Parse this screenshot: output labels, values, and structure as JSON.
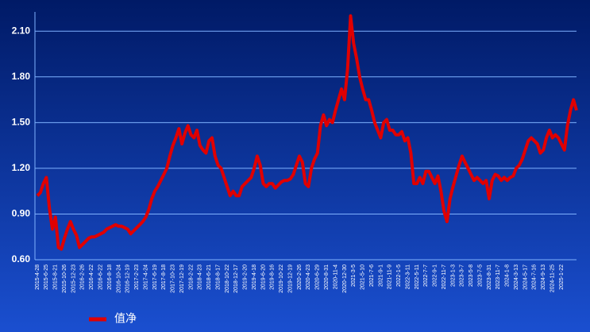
{
  "chart_data": {
    "type": "line",
    "categories": [
      "2015-4-28",
      null,
      null,
      "2015-6-25",
      null,
      null,
      "2015-8-21",
      null,
      null,
      "2015-10-26",
      null,
      null,
      "2015-12-23",
      null,
      null,
      "2016-2-26",
      null,
      null,
      "2016-4-22",
      null,
      null,
      "2016-6-22",
      null,
      null,
      "2016-8-18",
      null,
      null,
      "2016-10-24",
      null,
      null,
      "2016-12-19",
      null,
      null,
      "2017-2-23",
      null,
      null,
      "2017-4-24",
      null,
      null,
      "2017-6-19",
      null,
      null,
      "2017-8-18",
      null,
      null,
      "2017-10-23",
      null,
      null,
      "2017-12-19",
      null,
      null,
      "2018-2-22",
      null,
      null,
      "2018-4-23",
      null,
      null,
      "2018-6-21",
      null,
      null,
      "2018-8-17",
      null,
      null,
      "2018-10-22",
      null,
      null,
      "2018-12-17",
      null,
      null,
      "2019-2-20",
      null,
      null,
      "2019-4-18",
      null,
      null,
      "2019-6-20",
      null,
      null,
      "2019-8-16",
      null,
      null,
      "2019-10-22",
      null,
      null,
      "2019-12-19",
      null,
      null,
      "2020-2-26",
      null,
      null,
      "2020-4-23",
      null,
      null,
      "2020-6-29",
      null,
      null,
      "2020-8-31",
      null,
      null,
      "2020-11-4",
      null,
      null,
      "2020-12-30",
      null,
      null,
      "2021-3-5",
      null,
      null,
      "2021-5-10",
      null,
      null,
      "2021-7-6",
      null,
      null,
      "2021-9-1",
      null,
      null,
      "2021-11-9",
      null,
      null,
      "2022-1-5",
      null,
      null,
      "2022-3-11",
      null,
      null,
      "2022-5-11",
      null,
      null,
      "2022-7-7",
      null,
      null,
      "2022-9-1",
      null,
      null,
      "2022-11-7",
      null,
      null,
      "2023-1-3",
      null,
      null,
      "2023-3-7",
      null,
      null,
      "2023-5-8",
      null,
      null,
      "2023-7-5",
      null,
      null,
      "2023-8-31",
      null,
      null,
      "2023-11-7",
      null,
      null,
      "2024-1-8",
      null,
      null,
      "2024-3-13",
      null,
      null,
      "2024-5-17",
      null,
      null,
      "2024-7-16",
      null,
      null,
      "2024-9-13",
      null,
      null,
      "2024-11-25",
      null,
      null,
      "2025-1-22",
      null,
      null,
      null,
      null,
      null
    ],
    "series": [
      {
        "name": "值净",
        "color": "#e00000",
        "values": [
          1.02,
          1.04,
          1.1,
          1.14,
          0.94,
          0.8,
          0.88,
          0.68,
          0.67,
          0.74,
          0.8,
          0.85,
          0.8,
          0.76,
          0.68,
          0.7,
          0.72,
          0.74,
          0.75,
          0.75,
          0.76,
          0.77,
          0.78,
          0.8,
          0.81,
          0.82,
          0.83,
          0.82,
          0.82,
          0.81,
          0.8,
          0.77,
          0.79,
          0.81,
          0.83,
          0.85,
          0.88,
          0.93,
          1.0,
          1.05,
          1.08,
          1.12,
          1.16,
          1.2,
          1.28,
          1.35,
          1.4,
          1.46,
          1.36,
          1.43,
          1.48,
          1.42,
          1.4,
          1.45,
          1.35,
          1.32,
          1.3,
          1.38,
          1.4,
          1.28,
          1.22,
          1.2,
          1.14,
          1.08,
          1.02,
          1.05,
          1.02,
          1.02,
          1.08,
          1.1,
          1.12,
          1.14,
          1.2,
          1.28,
          1.22,
          1.1,
          1.08,
          1.1,
          1.1,
          1.07,
          1.09,
          1.11,
          1.12,
          1.12,
          1.13,
          1.16,
          1.22,
          1.28,
          1.24,
          1.1,
          1.08,
          1.2,
          1.26,
          1.3,
          1.48,
          1.55,
          1.48,
          1.52,
          1.5,
          1.58,
          1.65,
          1.72,
          1.65,
          1.85,
          2.2,
          2.02,
          1.92,
          1.8,
          1.72,
          1.65,
          1.65,
          1.58,
          1.5,
          1.45,
          1.4,
          1.5,
          1.52,
          1.45,
          1.45,
          1.42,
          1.42,
          1.44,
          1.38,
          1.4,
          1.3,
          1.1,
          1.1,
          1.14,
          1.1,
          1.18,
          1.18,
          1.14,
          1.1,
          1.15,
          1.05,
          0.92,
          0.85,
          1.0,
          1.08,
          1.15,
          1.22,
          1.28,
          1.24,
          1.2,
          1.16,
          1.12,
          1.14,
          1.12,
          1.1,
          1.12,
          1.0,
          1.12,
          1.16,
          1.15,
          1.12,
          1.14,
          1.12,
          1.14,
          1.15,
          1.2,
          1.22,
          1.26,
          1.32,
          1.38,
          1.4,
          1.38,
          1.36,
          1.3,
          1.32,
          1.4,
          1.45,
          1.4,
          1.42,
          1.4,
          1.36,
          1.32,
          1.48,
          1.58,
          1.65,
          1.58
        ]
      }
    ],
    "ylim": [
      0.6,
      2.2
    ],
    "yticks": [
      {
        "value": 0.6,
        "label": "0.60"
      },
      {
        "value": 0.9,
        "label": "0.90"
      },
      {
        "value": 1.2,
        "label": "1.20"
      },
      {
        "value": 1.5,
        "label": "1.50"
      },
      {
        "value": 1.8,
        "label": "1.80"
      },
      {
        "value": 2.1,
        "label": "2.10"
      }
    ],
    "grid": true,
    "legend": "bottom"
  }
}
